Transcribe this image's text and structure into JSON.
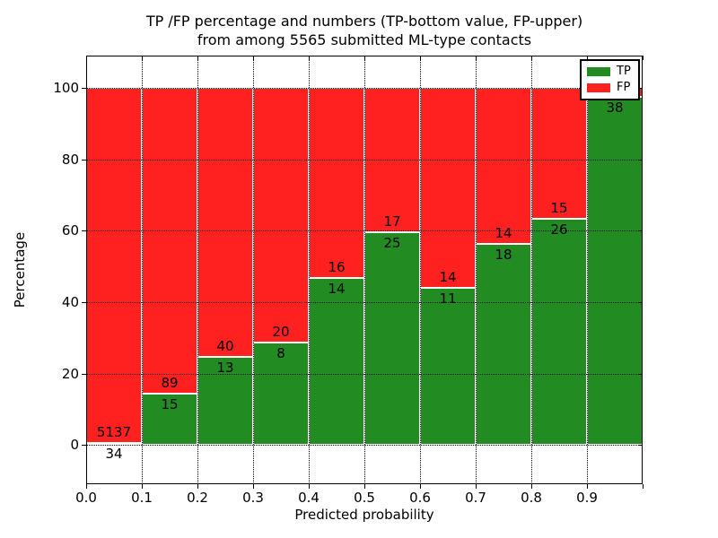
{
  "title_line1": "TP /FP percentage and numbers (TP-bottom value, FP-upper)",
  "title_line2": "from among 5565 submitted ML-type contacts",
  "legend": {
    "items": [
      {
        "label": "TP",
        "color": "#228b22"
      },
      {
        "label": "FP",
        "color": "#ff2020"
      }
    ]
  },
  "colors": {
    "tp": "#228b22",
    "fp": "#ff2020",
    "grid": "#000000",
    "background": "#ffffff"
  },
  "chart_data": {
    "type": "bar",
    "stacked": true,
    "title": "TP /FP percentage and numbers (TP-bottom value, FP-upper) from among 5565 submitted ML-type contacts",
    "xlabel": "Predicted probability",
    "ylabel": "Percentage",
    "xlim": [
      0.0,
      1.0
    ],
    "ylim": [
      -11,
      109
    ],
    "grid": true,
    "legend_position": "upper right",
    "xticks": [
      "0.0",
      "0.1",
      "0.2",
      "0.3",
      "0.4",
      "0.5",
      "0.6",
      "0.7",
      "0.8",
      "0.9"
    ],
    "yticks": [
      "0",
      "20",
      "40",
      "60",
      "80",
      "100"
    ],
    "ytick_values": [
      0,
      20,
      40,
      60,
      80,
      100
    ],
    "categories": [
      "0.0-0.1",
      "0.1-0.2",
      "0.2-0.3",
      "0.3-0.4",
      "0.4-0.5",
      "0.5-0.6",
      "0.6-0.7",
      "0.7-0.8",
      "0.8-0.9",
      "0.9-1.0"
    ],
    "series": [
      {
        "name": "TP",
        "values_pct": [
          0.66,
          14.42,
          24.53,
          28.57,
          46.67,
          59.52,
          44.0,
          56.25,
          63.41,
          97.44
        ]
      },
      {
        "name": "FP",
        "values_pct": [
          99.34,
          85.58,
          75.47,
          71.43,
          53.33,
          40.48,
          56.0,
          43.75,
          36.59,
          2.56
        ]
      }
    ],
    "bars": [
      {
        "x0": 0.0,
        "x1": 0.1,
        "tp_label": "34",
        "fp_label": "5137",
        "tp_pct": 0.66
      },
      {
        "x0": 0.1,
        "x1": 0.2,
        "tp_label": "15",
        "fp_label": "89",
        "tp_pct": 14.42
      },
      {
        "x0": 0.2,
        "x1": 0.3,
        "tp_label": "13",
        "fp_label": "40",
        "tp_pct": 24.53
      },
      {
        "x0": 0.3,
        "x1": 0.4,
        "tp_label": "8",
        "fp_label": "20",
        "tp_pct": 28.57
      },
      {
        "x0": 0.4,
        "x1": 0.5,
        "tp_label": "14",
        "fp_label": "16",
        "tp_pct": 46.67
      },
      {
        "x0": 0.5,
        "x1": 0.6,
        "tp_label": "25",
        "fp_label": "17",
        "tp_pct": 59.52
      },
      {
        "x0": 0.6,
        "x1": 0.7,
        "tp_label": "11",
        "fp_label": "14",
        "tp_pct": 44.0
      },
      {
        "x0": 0.7,
        "x1": 0.8,
        "tp_label": "18",
        "fp_label": "14",
        "tp_pct": 56.25
      },
      {
        "x0": 0.8,
        "x1": 0.9,
        "tp_label": "26",
        "fp_label": "15",
        "tp_pct": 63.41
      },
      {
        "x0": 0.9,
        "x1": 1.0,
        "tp_label": "38",
        "fp_label": "",
        "tp_pct": 97.44
      }
    ]
  }
}
